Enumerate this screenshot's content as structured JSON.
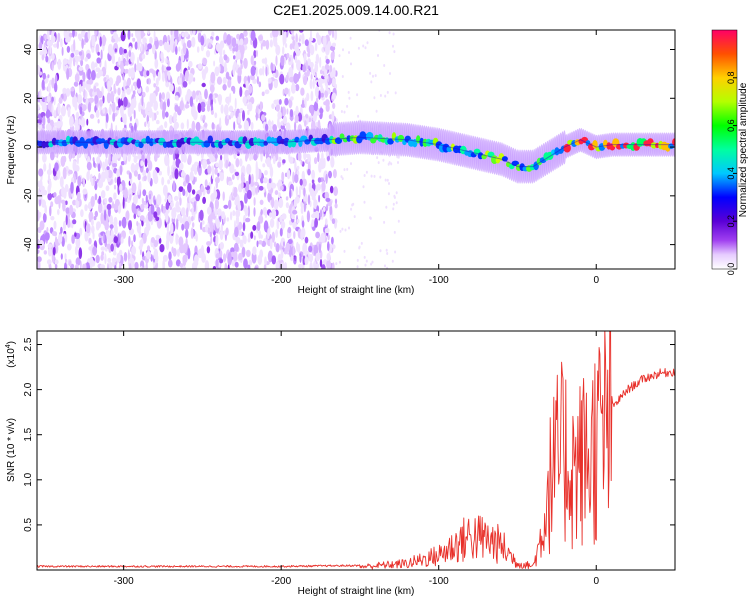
{
  "title": "C2E1.2025.009.14.00.R21",
  "chart_data": [
    {
      "type": "heatmap",
      "title": "C2E1.2025.009.14.00.R21",
      "xlabel": "Height of straight line (km)",
      "ylabel": "Frequency (Hz)",
      "xlim": [
        -355,
        50
      ],
      "ylim": [
        -50,
        48
      ],
      "xticks": [
        -300,
        -200,
        -100,
        0
      ],
      "yticks": [
        -40,
        -20,
        0,
        20,
        40
      ],
      "ridge": {
        "x": [
          -355,
          -300,
          -250,
          -200,
          -170,
          -150,
          -120,
          -100,
          -80,
          -60,
          -50,
          -40,
          -30,
          -20,
          -10,
          0,
          10,
          20,
          50
        ],
        "y": [
          2,
          2,
          2,
          2,
          3,
          4,
          3,
          1,
          -2,
          -5,
          -8,
          -8,
          -4,
          0,
          3,
          0,
          1,
          1,
          1
        ]
      },
      "colorbar": {
        "label": "Normalized spectral amplitude",
        "range": [
          0,
          1
        ],
        "ticks": [
          0.0,
          0.2,
          0.4,
          0.6,
          0.8
        ]
      }
    },
    {
      "type": "line",
      "xlabel": "Height of straight line (km)",
      "ylabel": "SNR (10 * v/v)",
      "y_multiplier": "(x10",
      "y_multiplier_exp": "4",
      "xlim": [
        -355,
        50
      ],
      "ylim": [
        0,
        2.65
      ],
      "xticks": [
        -300,
        -200,
        -100,
        0
      ],
      "yticks": [
        0.5,
        1.0,
        1.5,
        2.0,
        2.5
      ],
      "series": [
        {
          "color": "#e8302a",
          "x": [
            -355,
            -200,
            -150,
            -120,
            -100,
            -90,
            -80,
            -70,
            -60,
            -50,
            -40,
            -35,
            -30,
            -25,
            -20,
            -15,
            -10,
            -5,
            0,
            10,
            20,
            30,
            40,
            50
          ],
          "y": [
            0.03,
            0.03,
            0.04,
            0.08,
            0.18,
            0.3,
            0.42,
            0.38,
            0.3,
            0.08,
            0.05,
            0.4,
            1.0,
            1.3,
            1.4,
            1.2,
            1.3,
            1.35,
            1.55,
            1.8,
            2.0,
            2.12,
            2.18,
            2.2
          ]
        }
      ]
    }
  ]
}
